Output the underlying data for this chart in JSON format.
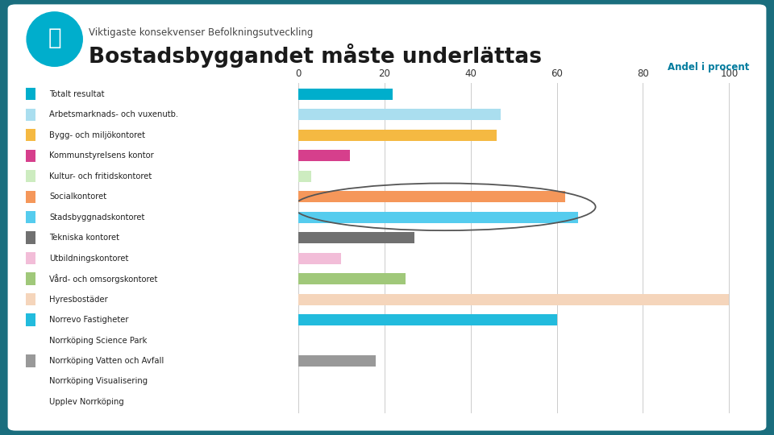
{
  "title_small": "Viktigaste konsekvenser Befolkningsutveckling",
  "title_large": "Bostadsbyggandet måste underlättas",
  "axis_label": "Andel i procent",
  "categories": [
    "Totalt resultat",
    "Arbetsmarknads- och vuxenutb.",
    "Bygg- och miljökontoret",
    "Kommunstyrelsens kontor",
    "Kultur- och fritidskontoret",
    "Socialkontoret",
    "Stadsbyggnadskontoret",
    "Tekniska kontoret",
    "Utbildningskontoret",
    "Vård- och omsorgskontoret",
    "Hyresbostäder",
    "Norrevo Fastigheter",
    "Norrköping Science Park",
    "Norrköping Vatten och Avfall",
    "Norrköping Visualisering",
    "Upplev Norrköping"
  ],
  "values": [
    22,
    47,
    46,
    12,
    3,
    62,
    65,
    27,
    10,
    25,
    100,
    60,
    0,
    18,
    0,
    0
  ],
  "colors": [
    "#00AECC",
    "#AADEEF",
    "#F5B942",
    "#D63F8C",
    "#CDECC0",
    "#F5975A",
    "#55CCEE",
    "#707070",
    "#F2BDD8",
    "#A0C87A",
    "#F5D5BB",
    "#22BBDD",
    "#FFFFFF",
    "#999999",
    "#FFFFFF",
    "#FFFFFF"
  ],
  "outer_bg": "#1a6e7e",
  "card_bg": "#ffffff",
  "title_color": "#1a1a1a",
  "subtitle_color": "#444444",
  "axis_label_color": "#007B9E",
  "xlim": [
    0,
    105
  ],
  "xticks": [
    0,
    20,
    40,
    60,
    80,
    100
  ],
  "icon_color": "#00AECC",
  "ellipse_rows": [
    5,
    6
  ]
}
